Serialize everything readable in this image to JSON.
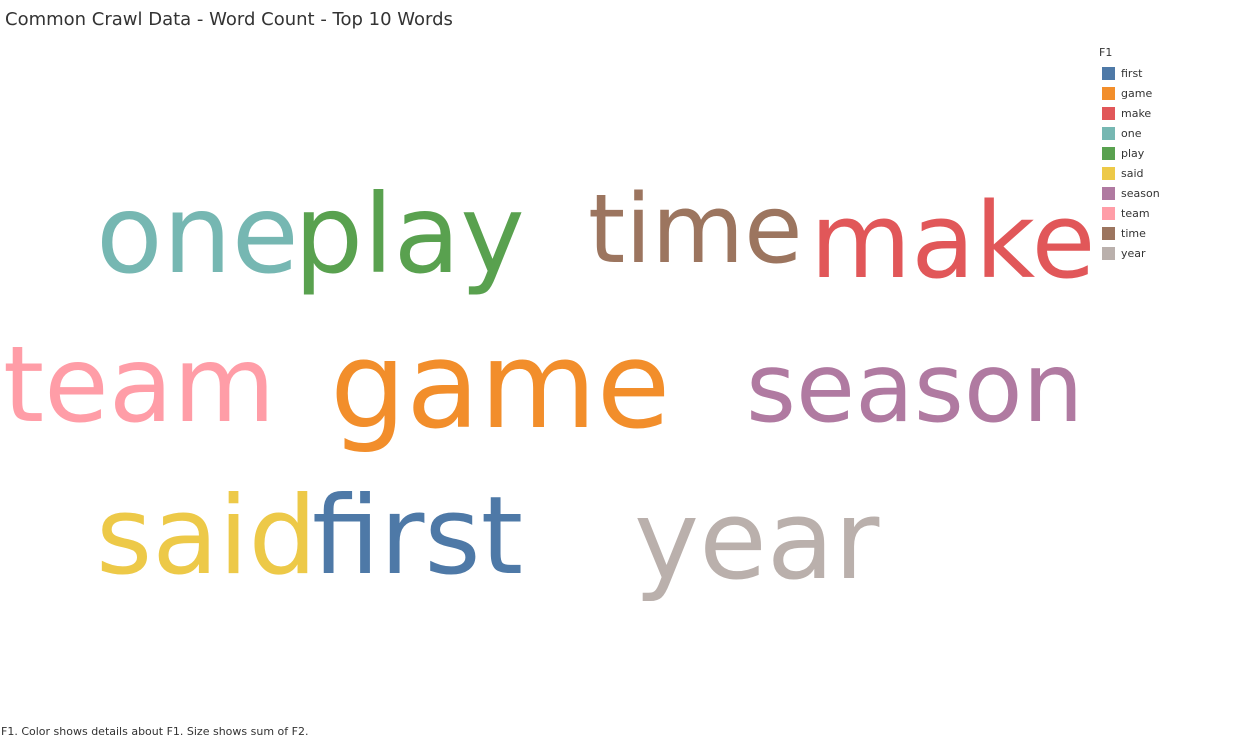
{
  "header": {
    "title": "Common Crawl Data - Word Count - Top 10 Words"
  },
  "legend": {
    "title": "F1",
    "items": [
      {
        "label": "first",
        "color": "#4E79A7"
      },
      {
        "label": "game",
        "color": "#F28E2B"
      },
      {
        "label": "make",
        "color": "#E15759"
      },
      {
        "label": "one",
        "color": "#76B7B2"
      },
      {
        "label": "play",
        "color": "#59A14F"
      },
      {
        "label": "said",
        "color": "#EDC948"
      },
      {
        "label": "season",
        "color": "#B07AA1"
      },
      {
        "label": "team",
        "color": "#FF9DA7"
      },
      {
        "label": "time",
        "color": "#9C755F"
      },
      {
        "label": "year",
        "color": "#BAB0AC"
      }
    ]
  },
  "caption": "F1.  Color shows details about F1.  Size shows sum of F2.",
  "chart_data": {
    "type": "word-cloud",
    "color_field": "F1",
    "size_field": "F2",
    "words": [
      {
        "text": "one",
        "color": "#76B7B2"
      },
      {
        "text": "play",
        "color": "#59A14F"
      },
      {
        "text": "time",
        "color": "#9C755F"
      },
      {
        "text": "make",
        "color": "#E15759"
      },
      {
        "text": "team",
        "color": "#FF9DA7"
      },
      {
        "text": "game",
        "color": "#F28E2B"
      },
      {
        "text": "season",
        "color": "#B07AA1"
      },
      {
        "text": "said",
        "color": "#EDC948"
      },
      {
        "text": "first",
        "color": "#4E79A7"
      },
      {
        "text": "year",
        "color": "#BAB0AC"
      }
    ]
  }
}
